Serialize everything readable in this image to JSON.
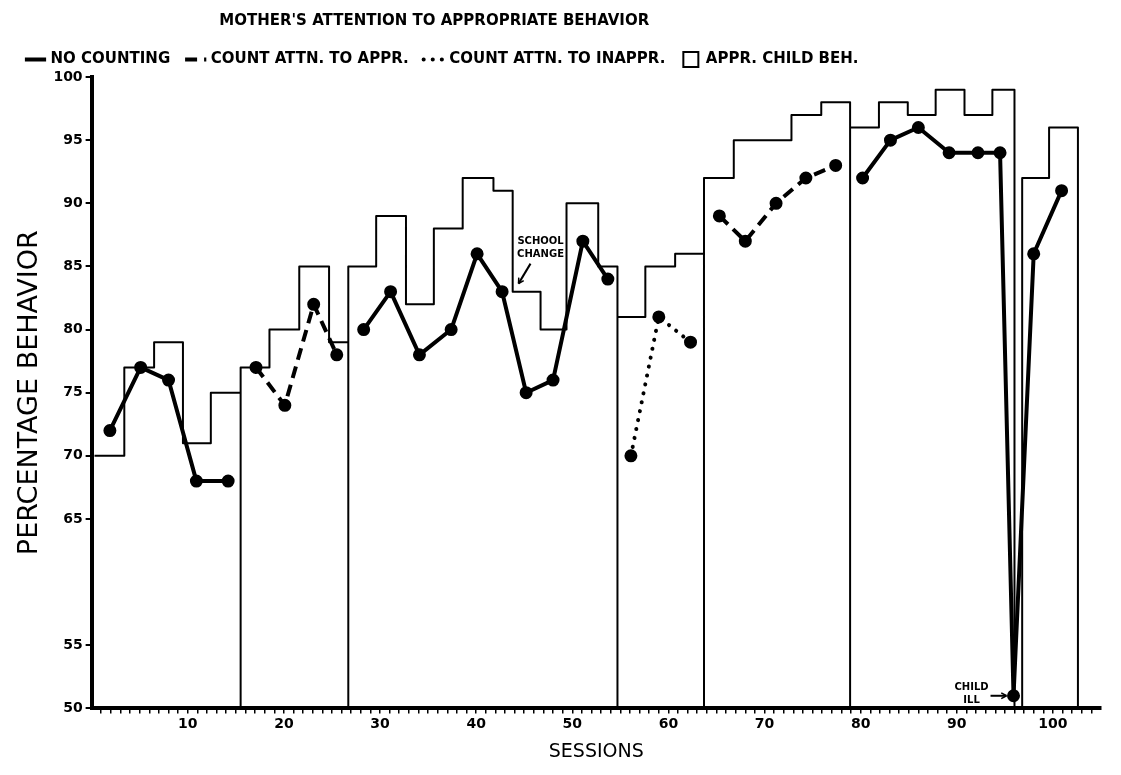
{
  "chart_data": {
    "type": "line",
    "xlabel": "SESSIONS",
    "ylabel": "PERCENTAGE BEHAVIOR",
    "legend_title": "MOTHER'S ATTENTION TO APPROPRIATE BEHAVIOR",
    "xlim": [
      0,
      105
    ],
    "xticks": [
      {
        "value": 1,
        "label": null
      },
      {
        "value": 2,
        "label": null
      },
      {
        "value": 3,
        "label": null
      },
      {
        "value": 4,
        "label": null
      },
      {
        "value": 5,
        "label": null
      },
      {
        "value": 6,
        "label": null
      },
      {
        "value": 7,
        "label": null
      },
      {
        "value": 8,
        "label": null
      },
      {
        "value": 9,
        "label": null
      },
      10,
      {
        "value": 11,
        "label": null
      },
      {
        "value": 12,
        "label": null
      },
      {
        "value": 13,
        "label": null
      },
      {
        "value": 14,
        "label": null
      },
      {
        "value": 15,
        "label": null
      },
      {
        "value": 16,
        "label": null
      },
      {
        "value": 17,
        "label": null
      },
      {
        "value": 18,
        "label": null
      },
      {
        "value": 19,
        "label": null
      },
      20,
      {
        "value": 21,
        "label": null
      },
      {
        "value": 22,
        "label": null
      },
      {
        "value": 23,
        "label": null
      },
      {
        "value": 24,
        "label": null
      },
      {
        "value": 25,
        "label": null
      },
      {
        "value": 26,
        "label": null
      },
      {
        "value": 27,
        "label": null
      },
      {
        "value": 28,
        "label": null
      },
      {
        "value": 29,
        "label": null
      },
      30,
      {
        "value": 31,
        "label": null
      },
      {
        "value": 32,
        "label": null
      },
      {
        "value": 33,
        "label": null
      },
      {
        "value": 34,
        "label": null
      },
      {
        "value": 35,
        "label": null
      },
      {
        "value": 36,
        "label": null
      },
      {
        "value": 37,
        "label": null
      },
      {
        "value": 38,
        "label": null
      },
      {
        "value": 39,
        "label": null
      },
      40,
      {
        "value": 41,
        "label": null
      },
      {
        "value": 42,
        "label": null
      },
      {
        "value": 43,
        "label": null
      },
      {
        "value": 44,
        "label": null
      },
      {
        "value": 45,
        "label": null
      },
      {
        "value": 46,
        "label": null
      },
      {
        "value": 47,
        "label": null
      },
      {
        "value": 48,
        "label": null
      },
      {
        "value": 49,
        "label": null
      },
      50,
      {
        "value": 51,
        "label": null
      },
      {
        "value": 52,
        "label": null
      },
      {
        "value": 53,
        "label": null
      },
      {
        "value": 54,
        "label": null
      },
      {
        "value": 55,
        "label": null
      },
      {
        "value": 56,
        "label": null
      },
      {
        "value": 57,
        "label": null
      },
      {
        "value": 58,
        "label": null
      },
      {
        "value": 59,
        "label": null
      },
      60,
      {
        "value": 61,
        "label": null
      },
      {
        "value": 62,
        "label": null
      },
      {
        "value": 63,
        "label": null
      },
      {
        "value": 64,
        "label": null
      },
      {
        "value": 65,
        "label": null
      },
      {
        "value": 66,
        "label": null
      },
      {
        "value": 67,
        "label": null
      },
      {
        "value": 68,
        "label": null
      },
      {
        "value": 69,
        "label": null
      },
      70,
      {
        "value": 71,
        "label": null
      },
      {
        "value": 72,
        "label": null
      },
      {
        "value": 73,
        "label": null
      },
      {
        "value": 74,
        "label": null
      },
      {
        "value": 75,
        "label": null
      },
      {
        "value": 76,
        "label": null
      },
      {
        "value": 77,
        "label": null
      },
      {
        "value": 78,
        "label": null
      },
      {
        "value": 79,
        "label": null
      },
      80,
      {
        "value": 81,
        "label": null
      },
      {
        "value": 82,
        "label": null
      },
      {
        "value": 83,
        "label": null
      },
      {
        "value": 84,
        "label": null
      },
      {
        "value": 85,
        "label": null
      },
      {
        "value": 86,
        "label": null
      },
      {
        "value": 87,
        "label": null
      },
      {
        "value": 88,
        "label": null
      },
      {
        "value": 89,
        "label": null
      },
      90,
      {
        "value": 91,
        "label": null
      },
      {
        "value": 92,
        "label": null
      },
      {
        "value": 93,
        "label": null
      },
      {
        "value": 94,
        "label": null
      },
      {
        "value": 95,
        "label": null
      },
      {
        "value": 96,
        "label": null
      },
      {
        "value": 97,
        "label": null
      },
      {
        "value": 98,
        "label": null
      },
      {
        "value": 99,
        "label": null
      },
      100,
      {
        "value": 101,
        "label": null
      },
      {
        "value": 102,
        "label": null
      },
      {
        "value": 103,
        "label": null
      },
      {
        "value": 104,
        "label": null
      }
    ],
    "ylim": [
      50,
      100
    ],
    "yticks": [
      50,
      55,
      65,
      70,
      75,
      80,
      85,
      90,
      95,
      100
    ],
    "grid": false,
    "legend": "top left",
    "marker": "circle",
    "annotations": [
      {
        "text": "SCHOOL CHANGE",
        "x": 44.2,
        "y": 83.4
      },
      {
        "text": "CHILD ILL",
        "x": 95.9,
        "y": 51
      }
    ],
    "series": [
      {
        "name": "NO COUNTING",
        "color": "#000000",
        "line_style": "solid",
        "x": [
          1.9,
          5.1,
          8.0,
          10.9,
          14.2,
          16,
          28.3,
          31.1,
          34.1,
          37.4,
          40.1,
          42.7,
          45.2,
          48.0,
          51.1,
          53.7,
          55,
          80.2,
          83.1,
          86.0,
          89.2,
          92.2,
          94.5,
          95.9,
          98.0,
          100.9
        ],
        "values": [
          72,
          77,
          76,
          68,
          68,
          null,
          80,
          83,
          78,
          80,
          86,
          83,
          75,
          76,
          87,
          84,
          null,
          92,
          95,
          96,
          94,
          94,
          94,
          51,
          86,
          91
        ]
      },
      {
        "name": "COUNT ATTN. TO APPR.",
        "color": "#000000",
        "line_style": "dashed",
        "x": [
          17.1,
          20.1,
          23.1,
          25.5,
          27,
          65.3,
          68.0,
          71.2,
          74.3,
          77.4
        ],
        "values": [
          77,
          74,
          82,
          78,
          null,
          89,
          87,
          90,
          92,
          93
        ]
      },
      {
        "name": "COUNT ATTN. TO INAPPR.",
        "color": "#000000",
        "line_style": "dotted",
        "x": [
          56.1,
          59.0,
          62.3
        ],
        "values": [
          70,
          81,
          79
        ]
      },
      {
        "name": "APPR. CHILD BEH.",
        "type": "step",
        "color": "#000000",
        "line_style": "solid",
        "marker": "none",
        "x": [
          0.3,
          3.4,
          6.5,
          9.5,
          12.4,
          15.5,
          15.5,
          18.5,
          21.6,
          24.7,
          26.7,
          26.7,
          29.6,
          32.7,
          35.6,
          38.6,
          41.8,
          43.8,
          46.7,
          49.4,
          52.7,
          54.7,
          54.7,
          57.6,
          60.7,
          63.7,
          63.7,
          66.8,
          72.8,
          75.9,
          78.9,
          78.9,
          81.9,
          84.9,
          87.8,
          90.8,
          93.7,
          96.0,
          96.8,
          99.6,
          102.6
        ],
        "values": [
          70,
          77,
          79,
          71,
          75,
          50,
          77,
          80,
          85,
          79,
          50,
          85,
          89,
          82,
          88,
          92,
          91,
          83,
          80,
          90,
          85,
          50,
          81,
          85,
          86,
          50,
          92,
          95,
          97,
          98,
          50,
          96,
          98,
          97,
          99,
          97,
          99,
          50,
          92,
          96,
          50
        ]
      }
    ]
  }
}
